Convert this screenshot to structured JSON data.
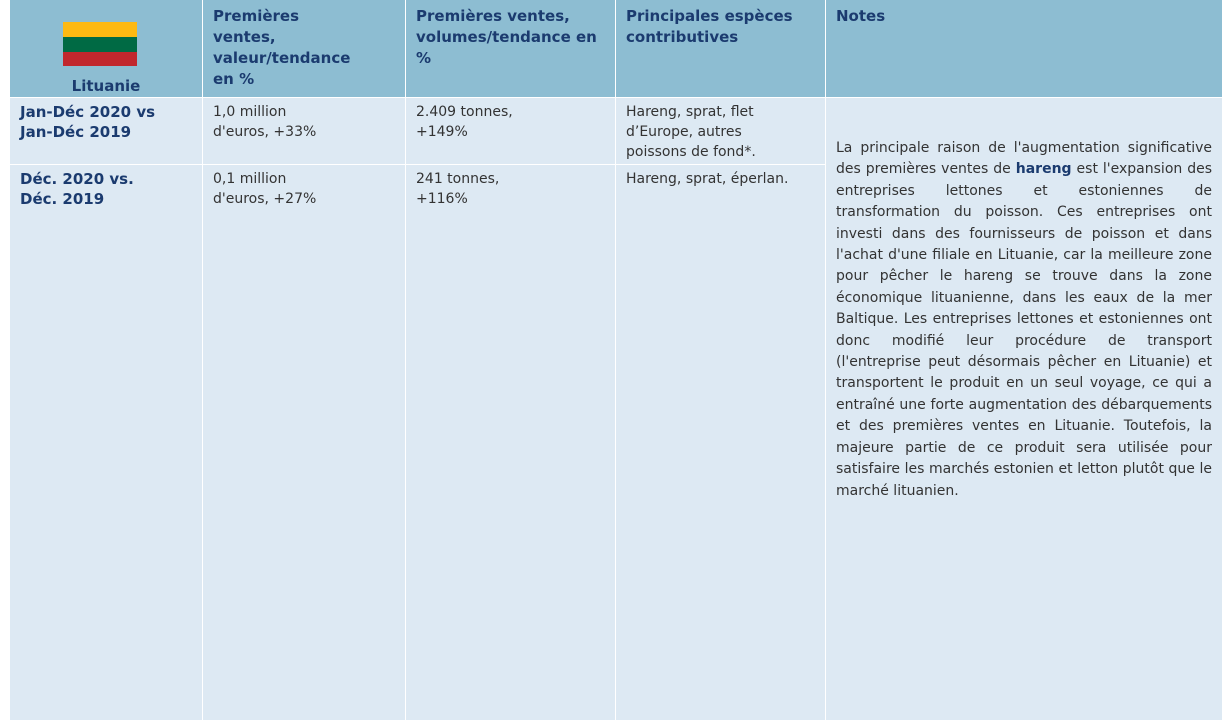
{
  "header": {
    "country": "Lituanie",
    "columns": [
      "Premières ventes, valeur/tendance en %",
      "Premières ventes, volumes/tendance en %",
      "Principales espèces contributives",
      "Notes"
    ]
  },
  "rows": [
    {
      "period": "Jan-Déc 2020 vs Jan-Déc 2019",
      "value": "1,0 million d'euros, +33%",
      "volume": "2.409 tonnes, +149%",
      "species": "Hareng, sprat, flet d’Europe, autres poissons de fond*."
    },
    {
      "period": "Déc. 2020 vs. Déc. 2019",
      "value": "0,1 million d'euros, +27%",
      "volume": "241 tonnes, +116%",
      "species": "Hareng, sprat, éperlan."
    }
  ],
  "notes": {
    "before": "La principale raison de l'augmentation significative des premières ventes de",
    "bold": "hareng",
    "after": "est l'expansion des entreprises lettones et estoniennes de transformation du poisson. Ces entreprises ont investi dans des fournisseurs de poisson et dans l'achat d'une filiale en Lituanie, car la meilleure zone pour pêcher le hareng se trouve dans la zone économique lituanienne, dans les eaux de la mer Baltique. Les entreprises lettones et estoniennes ont donc modifié leur procédure de transport (l'entreprise peut désormais pêcher en Lituanie) et transportent le produit en un seul voyage, ce qui a entraîné une forte augmentation des débarquements et des premières ventes en Lituanie. Toutefois, la majeure partie de ce produit sera utilisée pour satisfaire les marchés estonien et letton plutôt que le marché lituanien."
  }
}
